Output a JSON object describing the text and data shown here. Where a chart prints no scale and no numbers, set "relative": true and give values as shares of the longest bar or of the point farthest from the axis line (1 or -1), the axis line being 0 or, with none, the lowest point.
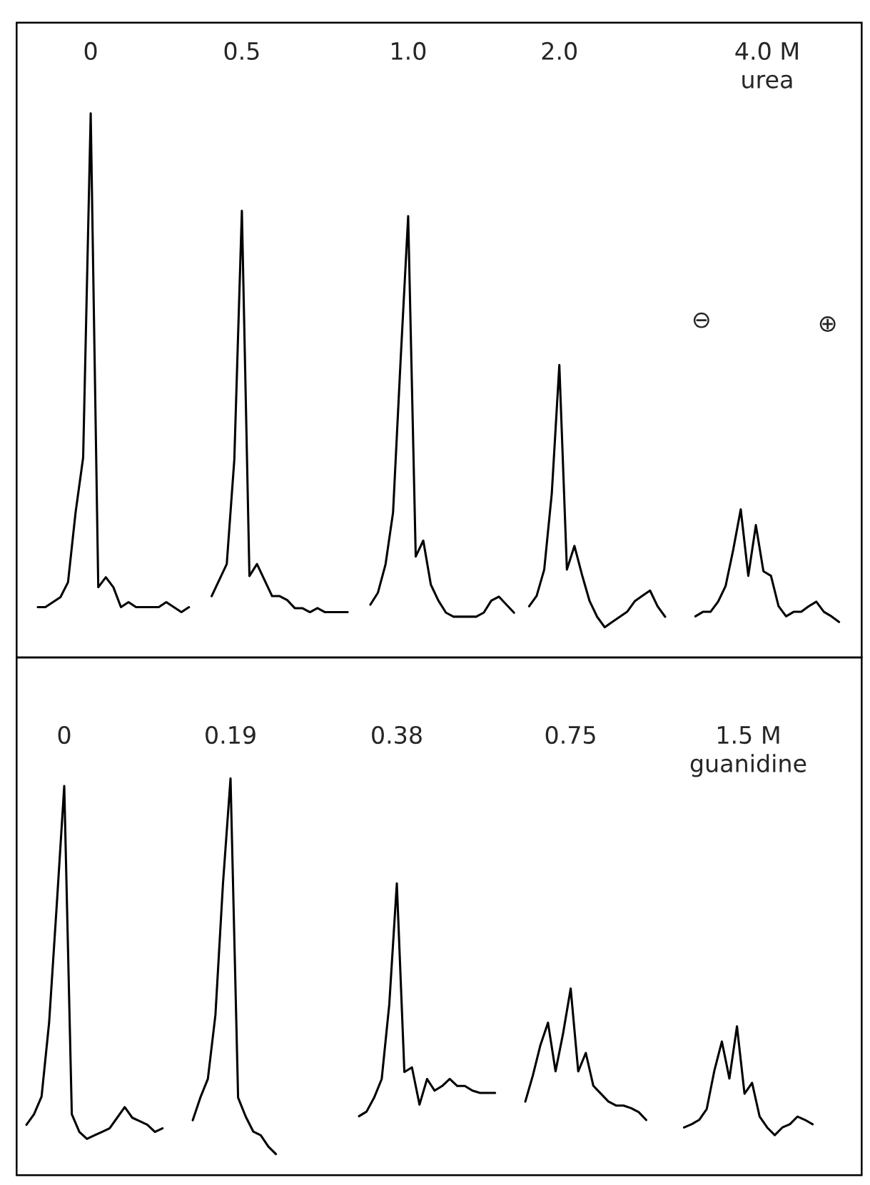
{
  "chart_data": [
    {
      "type": "line",
      "relative": true,
      "categories": [
        null,
        null,
        null,
        null,
        null,
        null,
        null,
        null,
        null,
        null,
        null,
        null,
        null,
        null,
        null,
        null,
        null,
        null,
        null,
        null,
        null
      ],
      "series": [
        {
          "name": "0",
          "color": "#000000",
          "values": [
            0.01,
            0.01,
            0.02,
            0.03,
            0.06,
            0.2,
            0.31,
            1.0,
            0.05,
            0.07,
            0.05,
            0.01,
            0.02,
            0.01,
            0.01,
            0.01,
            0.01,
            0.02,
            0.01,
            0,
            0.01
          ]
        }
      ]
    },
    {
      "type": "line",
      "relative": true,
      "categories": [
        null,
        null,
        null,
        null,
        null,
        null,
        null,
        null,
        null,
        null,
        null,
        null,
        null,
        null,
        null,
        null,
        null,
        null,
        null
      ],
      "series": [
        {
          "name": "0.5",
          "color": "#000000",
          "values": [
            0.04,
            0.08,
            0.12,
            0.38,
            1.0,
            0.09,
            0.12,
            0.08,
            0.04,
            0.04,
            0.03,
            0.01,
            0.01,
            0,
            0.01,
            0,
            0,
            0,
            0
          ]
        }
      ]
    },
    {
      "type": "line",
      "relative": true,
      "categories": [
        null,
        null,
        null,
        null,
        null,
        null,
        null,
        null,
        null,
        null,
        null,
        null,
        null,
        null,
        null,
        null,
        null,
        null,
        null,
        null
      ],
      "series": [
        {
          "name": "1.0",
          "color": "#000000",
          "values": [
            0.03,
            0.06,
            0.13,
            0.26,
            0.64,
            1.0,
            0.15,
            0.19,
            0.08,
            0.04,
            0.01,
            0,
            0,
            0,
            0,
            0.01,
            0.04,
            0.05,
            0.03,
            0.01
          ]
        }
      ]
    },
    {
      "type": "line",
      "relative": true,
      "categories": [
        null,
        null,
        null,
        null,
        null,
        null,
        null,
        null,
        null,
        null,
        null,
        null,
        null,
        null,
        null,
        null,
        null,
        null,
        null
      ],
      "series": [
        {
          "name": "2.0",
          "color": "#000000",
          "values": [
            0.08,
            0.12,
            0.22,
            0.51,
            1.0,
            0.22,
            0.31,
            0.2,
            0.1,
            0.04,
            0,
            0.02,
            0.04,
            0.06,
            0.1,
            0.12,
            0.14,
            0.08,
            0.04
          ]
        }
      ]
    },
    {
      "type": "line",
      "relative": true,
      "annotations": [
        "⊖",
        "⊕"
      ],
      "categories": [
        null,
        null,
        null,
        null,
        null,
        null,
        null,
        null,
        null,
        null,
        null,
        null,
        null,
        null,
        null,
        null,
        null,
        null,
        null,
        null
      ],
      "series": [
        {
          "name": "4.0 M\nurea",
          "color": "#000000",
          "values": [
            0.05,
            0.09,
            0.09,
            0.18,
            0.32,
            0.64,
            1.0,
            0.41,
            0.86,
            0.45,
            0.41,
            0.14,
            0.05,
            0.09,
            0.09,
            0.14,
            0.18,
            0.09,
            0.05,
            0
          ]
        }
      ]
    },
    {
      "type": "line",
      "relative": true,
      "categories": [
        null,
        null,
        null,
        null,
        null,
        null,
        null,
        null,
        null,
        null,
        null,
        null,
        null,
        null,
        null,
        null,
        null,
        null,
        null
      ],
      "series": [
        {
          "name": "0",
          "color": "#000000",
          "values": [
            0.04,
            0.07,
            0.12,
            0.33,
            0.66,
            1.0,
            0.07,
            0.02,
            0,
            0.01,
            0.02,
            0.03,
            0.06,
            0.09,
            0.06,
            0.05,
            0.04,
            0.02,
            0.03
          ]
        }
      ]
    },
    {
      "type": "line",
      "relative": true,
      "categories": [
        null,
        null,
        null,
        null,
        null,
        null,
        null,
        null,
        null,
        null,
        null,
        null
      ],
      "series": [
        {
          "name": "0.19",
          "color": "#000000",
          "values": [
            0.09,
            0.15,
            0.2,
            0.37,
            0.72,
            1.0,
            0.15,
            0.1,
            0.06,
            0.05,
            0.02,
            0
          ]
        }
      ]
    },
    {
      "type": "line",
      "relative": true,
      "categories": [
        null,
        null,
        null,
        null,
        null,
        null,
        null,
        null,
        null,
        null,
        null,
        null,
        null,
        null,
        null,
        null,
        null,
        null,
        null
      ],
      "series": [
        {
          "name": "0.38",
          "color": "#000000",
          "values": [
            0,
            0.02,
            0.08,
            0.16,
            0.48,
            1.0,
            0.19,
            0.21,
            0.05,
            0.16,
            0.11,
            0.13,
            0.16,
            0.13,
            0.13,
            0.11,
            0.1,
            0.1,
            0.1
          ]
        }
      ]
    },
    {
      "type": "line",
      "relative": true,
      "categories": [
        null,
        null,
        null,
        null,
        null,
        null,
        null,
        null,
        null,
        null,
        null,
        null,
        null,
        null,
        null,
        null,
        null
      ],
      "series": [
        {
          "name": "0.75",
          "color": "#000000",
          "values": [
            0.14,
            0.34,
            0.57,
            0.74,
            0.37,
            0.66,
            1.0,
            0.37,
            0.51,
            0.26,
            0.2,
            0.14,
            0.11,
            0.11,
            0.09,
            0.06,
            0
          ]
        }
      ]
    },
    {
      "type": "line",
      "relative": true,
      "categories": [
        null,
        null,
        null,
        null,
        null,
        null,
        null,
        null,
        null,
        null,
        null,
        null,
        null,
        null,
        null,
        null,
        null,
        null
      ],
      "series": [
        {
          "name": "1.5 M\nguanidine",
          "color": "#000000",
          "values": [
            0.07,
            0.1,
            0.14,
            0.24,
            0.59,
            0.86,
            0.52,
            1.0,
            0.38,
            0.48,
            0.17,
            0.07,
            0,
            0.07,
            0.1,
            0.17,
            0.14,
            0.1
          ]
        }
      ]
    }
  ]
}
